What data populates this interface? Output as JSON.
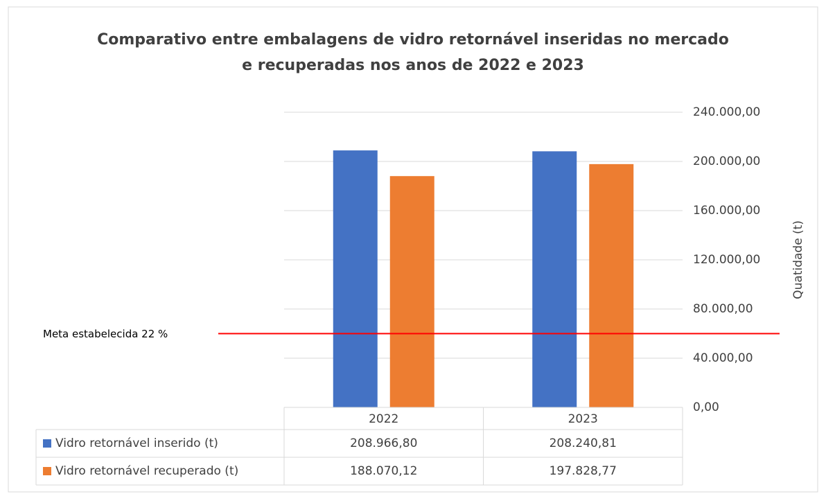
{
  "chart_data": {
    "type": "bar",
    "title": [
      "Comparativo entre embalagens de vidro retornável inseridas no mercado",
      "e recuperadas nos anos de 2022 e 2023"
    ],
    "categories": [
      "2022",
      "2023"
    ],
    "series": [
      {
        "name": "Vidro retornável inserido (t)",
        "color": "#4472c4",
        "values": [
          208966.8,
          208240.81
        ],
        "value_labels": [
          "208.966,80",
          "208.240,81"
        ]
      },
      {
        "name": "Vidro retornável recuperado (t)",
        "color": "#ed7d31",
        "values": [
          188070.12,
          197828.77
        ],
        "value_labels": [
          "188.070,12",
          "197.828,77"
        ]
      }
    ],
    "y_label": "Quatidade (t)",
    "ylim": [
      0,
      240000
    ],
    "yticks": [
      {
        "value": 0,
        "label": "0,00"
      },
      {
        "value": 40000,
        "label": "40.000,00"
      },
      {
        "value": 80000,
        "label": "80.000,00"
      },
      {
        "value": 120000,
        "label": "120.000,00"
      },
      {
        "value": 160000,
        "label": "160.000,00"
      },
      {
        "value": 200000,
        "label": "200.000,00"
      },
      {
        "value": 240000,
        "label": "240.000,00"
      }
    ],
    "grid": true,
    "reference_line": {
      "label": "Meta estabelecida 22 %",
      "value": 60000,
      "color": "#ff0000"
    }
  }
}
